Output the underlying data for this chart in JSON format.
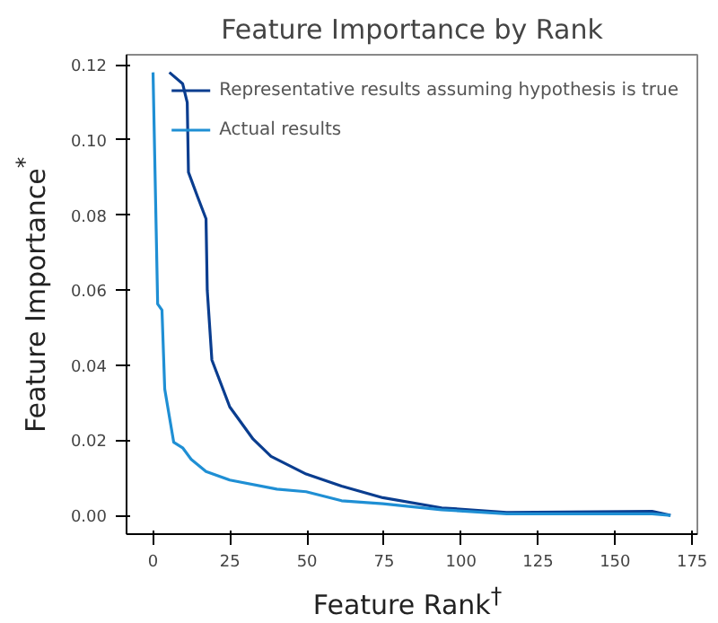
{
  "chart_data": {
    "type": "line",
    "title": "Feature Importance by Rank",
    "xlabel": "Feature Rank$^{†}$",
    "ylabel": "Feature Importance$^{*}$",
    "xlim": [
      -8.6,
      176.7
    ],
    "ylim": [
      -0.005,
      0.1227
    ],
    "xticks": [
      0,
      25,
      50,
      75,
      100,
      125,
      150,
      175
    ],
    "yticks": [
      {
        "value": 0,
        "label": "0.00"
      },
      {
        "value": 0.02,
        "label": "0.02"
      },
      {
        "value": 0.04,
        "label": "0.04"
      },
      {
        "value": 0.06,
        "label": "0.06"
      },
      {
        "value": 0.08,
        "label": "0.08"
      },
      {
        "value": 0.1,
        "label": "0.10"
      },
      {
        "value": 0.12,
        "label": "0.12"
      }
    ],
    "grid": false,
    "legend": "top right",
    "line_style": "solid",
    "series": [
      {
        "name": "Representative results assuming hypothesis is true",
        "color": "#0a3d8f",
        "x": [
          5.3,
          9.6,
          11.1,
          11.5,
          14.3,
          17.2,
          17.6,
          19.1,
          24.9,
          32.5,
          38.3,
          49.7,
          61.2,
          74.6,
          93.7,
          114.8,
          162,
          168
        ],
        "values": [
          0.118,
          0.115,
          0.11,
          0.0914,
          0.0852,
          0.079,
          0.06,
          0.0414,
          0.0289,
          0.0203,
          0.0157,
          0.011,
          0.0078,
          0.0047,
          0.002,
          0.0008,
          0.0011,
          0.0
        ]
      },
      {
        "name": "Actual results",
        "color": "#1f8fd4",
        "x": [
          0,
          1.5,
          2.9,
          3.8,
          6.7,
          9.6,
          12.4,
          17.2,
          24.9,
          40.2,
          49.7,
          61.2,
          74.6,
          93.7,
          114.8,
          162,
          168
        ],
        "values": [
          0.118,
          0.0563,
          0.0547,
          0.0336,
          0.0195,
          0.018,
          0.0149,
          0.0117,
          0.0094,
          0.007,
          0.0063,
          0.0039,
          0.0031,
          0.0015,
          0.0004,
          0.0004,
          0.0
        ]
      }
    ]
  }
}
